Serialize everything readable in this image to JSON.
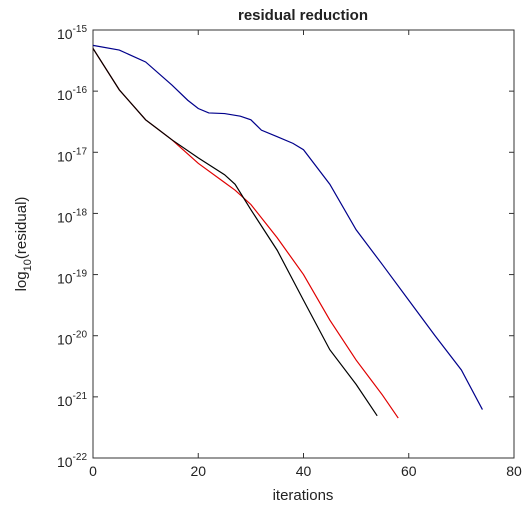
{
  "chart_data": {
    "type": "line",
    "title": "residual reduction",
    "x_label": "iterations",
    "y_label": "log_10(residual)",
    "log_y": true,
    "grid": false,
    "xlim": [
      0,
      80
    ],
    "xticks": [
      0,
      20,
      40,
      60,
      80
    ],
    "ylim": [
      1e-22,
      1e-15
    ],
    "yticks": [
      {
        "value": 1e-22,
        "label": "10^-22"
      },
      {
        "value": 1e-21,
        "label": "10^-21"
      },
      {
        "value": 1e-20,
        "label": "10^-20"
      },
      {
        "value": 1e-19,
        "label": "10^-19"
      },
      {
        "value": 1e-18,
        "label": "10^-18"
      },
      {
        "value": 1e-17,
        "label": "10^-17"
      },
      {
        "value": 1e-16,
        "label": "10^-16"
      },
      {
        "value": 1e-15,
        "label": "10^-15"
      }
    ],
    "series": [
      {
        "color": "#00008b",
        "x": [
          0,
          5,
          10,
          15,
          18,
          20,
          22,
          25,
          28,
          30,
          32,
          35,
          38,
          40,
          45,
          50,
          55,
          60,
          65,
          70,
          74
        ],
        "values": [
          5.6e-16,
          4.7e-16,
          3e-16,
          1.26e-16,
          7.1e-17,
          5.2e-17,
          4.4e-17,
          4.3e-17,
          3.9e-17,
          3.4e-17,
          2.3e-17,
          1.8e-17,
          1.4e-17,
          1.1e-17,
          3e-18,
          5.4e-19,
          1.45e-19,
          3.8e-20,
          1e-20,
          2.75e-21,
          6.2e-22
        ]
      },
      {
        "color": "#e00000",
        "x": [
          0,
          5,
          10,
          15,
          20,
          25,
          27,
          30,
          35,
          40,
          45,
          50,
          55,
          58
        ],
        "values": [
          5e-16,
          1.05e-16,
          3.4e-17,
          1.6e-17,
          6.6e-18,
          3.2e-18,
          2.4e-18,
          1.4e-18,
          4e-19,
          1e-19,
          1.8e-20,
          4e-21,
          1.07e-21,
          4.5e-22
        ]
      },
      {
        "color": "#000000",
        "x": [
          0,
          5,
          10,
          15,
          20,
          25,
          27,
          30,
          35,
          40,
          45,
          50,
          54
        ],
        "values": [
          5e-16,
          1.05e-16,
          3.4e-17,
          1.6e-17,
          8.1e-18,
          4.3e-18,
          3e-18,
          1.15e-18,
          2.5e-19,
          3.8e-20,
          5.9e-21,
          1.6e-21,
          4.9e-22
        ]
      }
    ]
  }
}
